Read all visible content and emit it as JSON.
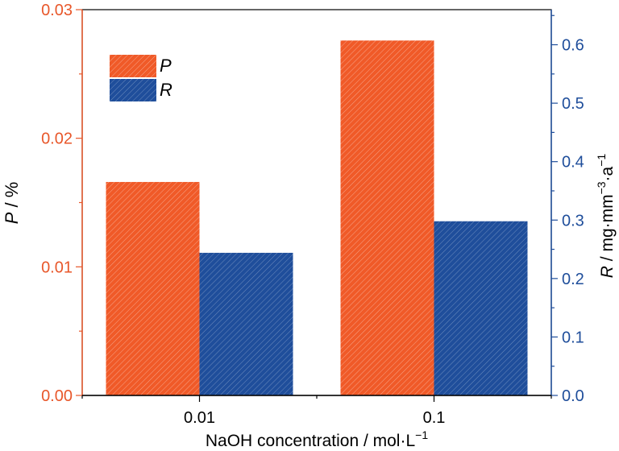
{
  "chart_data": {
    "type": "bar",
    "categories": [
      "0.01",
      "0.1"
    ],
    "series": [
      {
        "name": "P",
        "axis": "left",
        "values": [
          0.0166,
          0.0276
        ],
        "color": "#f05a28"
      },
      {
        "name": "R",
        "axis": "right",
        "values": [
          0.244,
          0.298
        ],
        "color": "#1f4e9b"
      }
    ],
    "xlabel": "NaOH concentration / mol·L",
    "xlabel_sup": "−1",
    "ylabel_left_symbol": "P",
    "ylabel_left_unit": " / %",
    "ylabel_right_symbol": "R",
    "ylabel_right_unit": " / mg·mm",
    "ylabel_right_sup1": "−3",
    "ylabel_right_mid": "·a",
    "ylabel_right_sup2": "−1",
    "ylim_left": [
      0,
      0.03
    ],
    "ylim_right": [
      0,
      0.66
    ],
    "left_ticks": [
      "0.00",
      "0.01",
      "0.02",
      "0.03"
    ],
    "right_ticks": [
      "0.0",
      "0.1",
      "0.2",
      "0.3",
      "0.4",
      "0.5",
      "0.6"
    ],
    "legend_position": "top-left",
    "left_axis_color": "#e8572a",
    "right_axis_color": "#1f4e9b"
  }
}
